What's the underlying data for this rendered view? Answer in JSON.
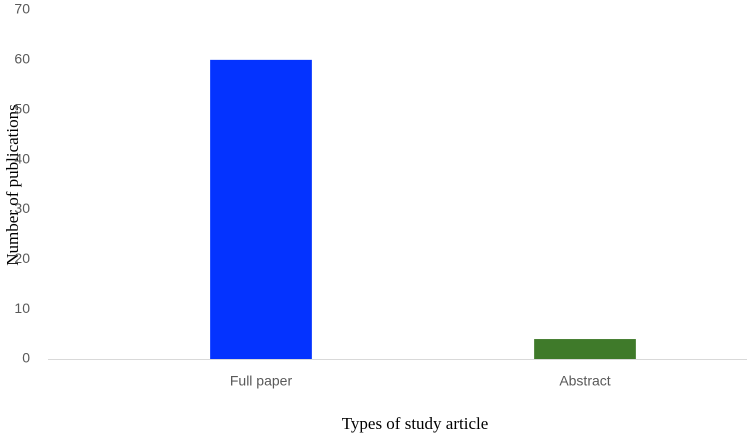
{
  "chart_data": {
    "type": "bar",
    "x_label": "Types of study article",
    "y_label": "Number of publications",
    "categories": [
      "Full paper",
      "Abstract"
    ],
    "values": [
      60,
      4
    ],
    "colors": [
      "#0433ff",
      "#3f7a2a"
    ],
    "ylim": [
      0,
      70
    ],
    "yticks": [
      0,
      10,
      20,
      30,
      40,
      50,
      60,
      70
    ],
    "grid": false
  }
}
